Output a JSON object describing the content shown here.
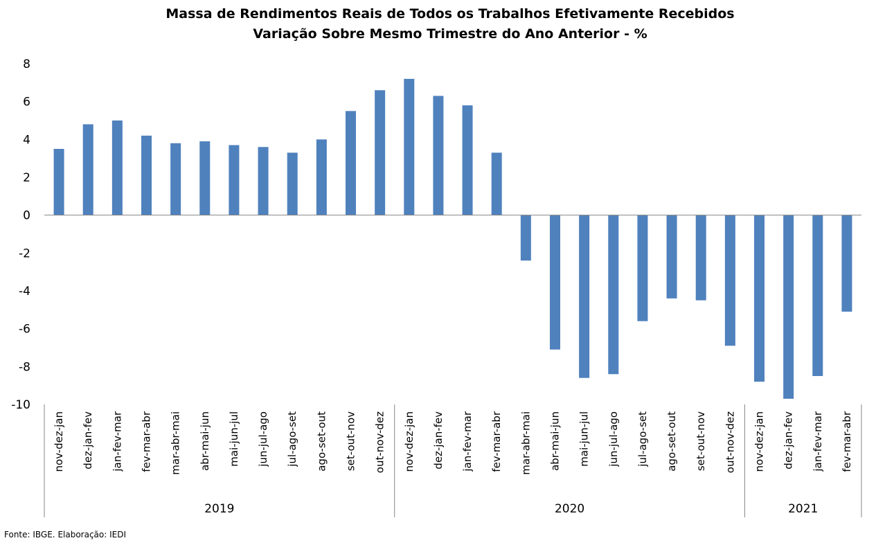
{
  "chart_data": {
    "type": "bar",
    "title": "Massa de Rendimentos Reais de Todos os Trabalhos Efetivamente Recebidos",
    "subtitle": "Variação Sobre Mesmo Trimestre do Ano Anterior - %",
    "categories": [
      "nov-dez-jan",
      "dez-jan-fev",
      "jan-fev-mar",
      "fev-mar-abr",
      "mar-abr-mai",
      "abr-mai-jun",
      "mai-jun-jul",
      "jun-jul-ago",
      "jul-ago-set",
      "ago-set-out",
      "set-out-nov",
      "out-nov-dez",
      "nov-dez-jan",
      "dez-jan-fev",
      "jan-fev-mar",
      "fev-mar-abr",
      "mar-abr-mai",
      "abr-mai-jun",
      "mai-jun-jul",
      "jun-jul-ago",
      "jul-ago-set",
      "ago-set-out",
      "set-out-nov",
      "out-nov-dez",
      "nov-dez-jan",
      "dez-jan-fev",
      "jan-fev-mar",
      "fev-mar-abr"
    ],
    "values": [
      3.5,
      4.8,
      5.0,
      4.2,
      3.8,
      3.9,
      3.7,
      3.6,
      3.3,
      4.0,
      5.5,
      6.6,
      7.2,
      6.3,
      5.8,
      3.3,
      -2.4,
      -7.1,
      -8.6,
      -8.4,
      -5.6,
      -4.4,
      -4.5,
      -6.9,
      -8.8,
      -9.7,
      -8.5,
      -5.1
    ],
    "groups": [
      {
        "label": "2019",
        "count": 12
      },
      {
        "label": "2020",
        "count": 12
      },
      {
        "label": "2021",
        "count": 4
      }
    ],
    "ylim": [
      -10,
      8
    ],
    "yticks": [
      8,
      6,
      4,
      2,
      0,
      -2,
      -4,
      -6,
      -8,
      -10
    ],
    "grid": false,
    "legend": "none",
    "bar_color": "#4f81bd",
    "xlabel": "",
    "ylabel": ""
  },
  "source": "Fonte: IBGE. Elaboração: IEDI"
}
